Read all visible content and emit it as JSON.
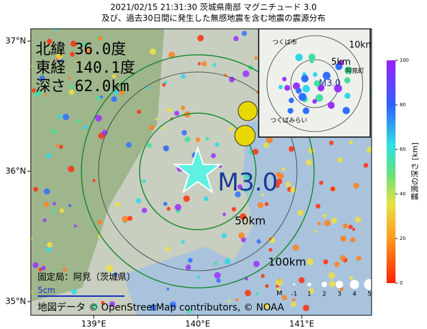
{
  "header": {
    "title": "2021/02/15 21:31:30  茨城県南部 マグニチュード 3.0",
    "subtitle": "及び、過去30日間に発生した無感地震を含む地震の震源分布"
  },
  "info": {
    "latitude": "北緯  36.0度",
    "longitude": "東経 140.1度",
    "depth": "深さ  62.0km"
  },
  "map": {
    "magnitude": "M3.0",
    "rings": [
      "50km",
      "100km"
    ],
    "station": "固定局：阿見（茨城県）",
    "scale": "5cm",
    "attribution": "地図データ © OpenStreetMap contributors, © NOAA",
    "xticks": [
      {
        "value": 139,
        "label": "139°E"
      },
      {
        "value": 140,
        "label": "140°E"
      },
      {
        "value": 141,
        "label": "141°E"
      }
    ],
    "yticks": [
      {
        "value": 35,
        "label": "35°N"
      },
      {
        "value": 36,
        "label": "36°N"
      },
      {
        "value": 37,
        "label": "37°N"
      }
    ]
  },
  "inset": {
    "rings": [
      "10km",
      "5km"
    ],
    "magnitude": "M3.0",
    "places": [
      "つくば市",
      "つくばみらい",
      "阿見町"
    ]
  },
  "size_legend": {
    "title": "M",
    "labels": [
      "-1",
      "1",
      "2",
      "3",
      "4",
      "5"
    ]
  },
  "colorbar": {
    "label": "震源の深さ [km]",
    "lim": [
      0,
      100
    ],
    "ticks": [
      0,
      20,
      40,
      60,
      80,
      100
    ]
  }
}
